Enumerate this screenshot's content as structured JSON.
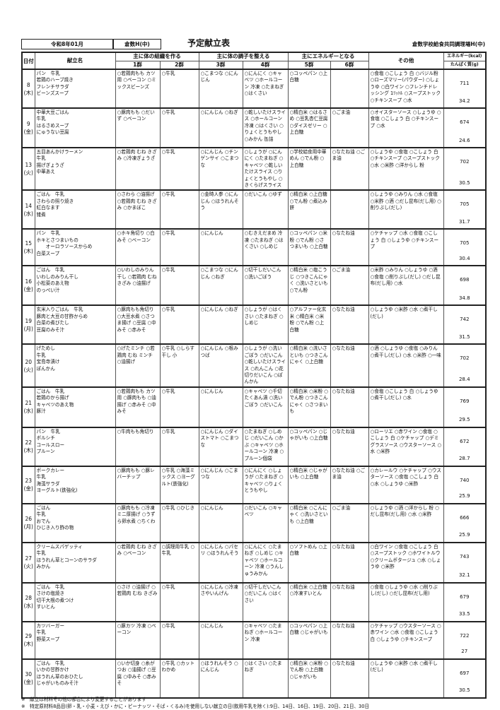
{
  "header": {
    "period": "令和8年01月",
    "school": "倉数H(中)",
    "title": "予定献立表",
    "organization": "倉数学校給食共同調理場H(中)"
  },
  "columns": {
    "date": "日付",
    "menu": "献立名",
    "group_body": "主に体の組織を作る",
    "group_condition": "主に体の調子を整える",
    "group_energy": "主にエネルギーとなる",
    "g1": "1群",
    "g2": "2群",
    "g3": "3群",
    "g4": "4群",
    "g5": "5群",
    "g6": "6群",
    "other": "その他",
    "energy": "エネルギー(kcal)",
    "protein": "たんぱく質(g)"
  },
  "rows": [
    {
      "day": "8",
      "dow": "(木)",
      "menu": [
        "パン　牛乳",
        "若鶏のハーブ焼き",
        "フレンチサラダ",
        "ビーンズスープ"
      ],
      "g1": "○若鶏肉もも カツ用 ○ベーコン ○ミックスビーンズ",
      "g2": "○牛乳",
      "g3": "○こまつな ○にんじん",
      "g4": "○にんにく ○キャベツ ○ホールコーン 冷凍 ○たまねぎ ○はくさい",
      "g5": "○コッペパン ○上白糖",
      "g6": "",
      "other": "○食塩 ○こしょう 白 ○バジル粉 ○ローズマリー(パウダー) ○しょうゆ ○白ワイン ○フレンチドレッシング 1ﾘｯﾄﾙ ○スープストック ○チキンスープ ○水",
      "kcal": "711",
      "protein": "34.2"
    },
    {
      "day": "9",
      "dow": "(金)",
      "menu": [
        "中華大豆ごはん",
        "牛乳",
        "はるさめスープ",
        "にゅうない豆腐"
      ],
      "g1": "○豚肉もも ○だいず ○ベーコン",
      "g2": "○牛乳",
      "g3": "○にんじん ○ねぎ",
      "g4": "○乾しいたけスライス ○ホールコーン 冷凍 ○はくさい ○りょくとうもやし ○みかん 缶詰",
      "g5": "○精白米 ○はるさめ ○豆乳杏仁豆腐 ○ダイスゼリー ○上白糖",
      "g6": "○ごま油",
      "other": "○オイスターソース ○しょうゆ ○食塩 ○こしょう 白 ○チキンスープ ○水",
      "kcal": "674",
      "protein": "24.6"
    },
    {
      "day": "13",
      "dow": "(火)",
      "menu": [
        "五目あんかけラーメン",
        "牛乳",
        "揚げぎょうざ",
        "中華あえ"
      ],
      "g1": "○若鶏肉 むね きざみ ○冷凍ぎょうざ",
      "g2": "○牛乳",
      "g3": "○にんじん ○チンゲンサイ ○こまつな",
      "g4": "○しょうが ○にんにく ○たまねぎ ○キャベツ ○乾しいたけスライス ○りょくとうもやし ○きくらげスライス",
      "g5": "○学校給食用中華めん ○でん粉 ○上白糖",
      "g6": "○なたね油 ○ごま油",
      "other": "○しょうゆ ○食塩 ○こしょう 白 ○チキンスープ ○スープストック ○水 ○米酢 ○洋からし 粉",
      "kcal": "702",
      "protein": "30.5"
    },
    {
      "day": "14",
      "dow": "(水)",
      "menu": [
        "ごはん　牛乳",
        "さわらの照り焼き",
        "紅白なます",
        "雑煮"
      ],
      "g1": "○さわら ○油揚げ ○若鶏肉 むね きざみ ○かまぼこ",
      "g2": "○牛乳",
      "g3": "○金時人参 ○にんじん ○ほうれんそう",
      "g4": "○だいこん ○ゆず",
      "g5": "○精白米 ○上白糖 ○でん粉 ○煮込み餅",
      "g6": "",
      "other": "○しょうゆ ○みりん ○水 ○食塩 ○米酢 ○酒 ○だし昆布(だし用) ○削りぶし(だし)",
      "kcal": "705",
      "protein": "31.7"
    },
    {
      "day": "15",
      "dow": "(木)",
      "menu": [
        "パン　牛乳",
        "ホキとさつまいもの",
        "　　オーロラソースからめ",
        "白菜スープ"
      ],
      "g1": "○ホキ角切り ○白みそ ○ベーコン",
      "g2": "○牛乳",
      "g3": "○にんじん",
      "g4": "○むきえだまめ 冷凍 ○たまねぎ ○はくさい ○しめじ",
      "g5": "○コッペパン ○米粉 ○でん粉 ○さつまいも ○上白糖",
      "g6": "○なたね油",
      "other": "○ケチャップ ○水 ○食塩 ○こしょう 白 ○しょうゆ ○チキンスープ",
      "kcal": "705",
      "protein": "30.4"
    },
    {
      "day": "16",
      "dow": "(金)",
      "menu": [
        "ごはん　牛乳",
        "いわしのみりん干し",
        "小松菜のあえ物",
        "のっぺい汁"
      ],
      "g1": "○いわしのみりん干し ○若鶏肉 むね きざみ ○油揚げ",
      "g2": "○牛乳",
      "g3": "○こまつな ○にんじん ○ねぎ",
      "g4": "○切干しだいこん ○洗いごぼう",
      "g5": "○精白米 ○塩こうじ ○つきこんにゃく ○洗いさといも ○でん粉",
      "g6": "○ごま油",
      "other": "○米酢 ○みりん ○しょうゆ ○酒 ○食塩 ○削りぶし(だし) ○だし昆布(だし用) ○水",
      "kcal": "698",
      "protein": "34.8"
    },
    {
      "day": "19",
      "dow": "(月)",
      "menu": [
        "玄米入りごはん　牛乳",
        "豚肉と大豆の甘酢からめ",
        "白菜の煮びたし",
        "豆腐のみそ汁"
      ],
      "g1": "○豚肉もも角切り ○大豆水煮 ○さつま揚げ ○豆腐 ○中みそ ○赤みそ",
      "g2": "○牛乳",
      "g3": "○にんじん ○ねぎ",
      "g4": "○しょうが ○はくさい ○たまねぎ ○しめじ",
      "g5": "○アルファー化玄米 ○精白米 ○米粉 ○でん粉 ○上白糖",
      "g6": "○なたね油",
      "other": "○しょうゆ ○米酢 ○水 ○煮干し(だし)",
      "kcal": "742",
      "protein": "31.5"
    },
    {
      "day": "20",
      "dow": "(火)",
      "menu": [
        "げためし",
        "牛乳",
        "宝島寺漬け",
        "ぽんかん"
      ],
      "g1": "○げたミンチ ○若鶏肉 むね ミンチ ○油揚げ",
      "g2": "○牛乳 ○しらす干し 小",
      "g3": "○にんじん ○根みつば",
      "g4": "○しょうが ○洗いごぼう ○だいこん ○乾しいたけスライス ○れんこん ○花切りだいこん ○ぽんかん",
      "g5": "○精白米 ○洗いさといも ○つきこんにゃく ○上白糖",
      "g6": "○なたね油",
      "other": "○酒 ○しょうゆ ○食塩 ○みりん ○煮干し(だし) ○水 ○米酢 ○一味",
      "kcal": "702",
      "protein": "28.4"
    },
    {
      "day": "21",
      "dow": "(水)",
      "menu": [
        "ごはん　牛乳",
        "若鶏のから揚げ",
        "キャベツのあえ物",
        "豚汁"
      ],
      "g1": "○若鶏肉もも カツ用 ○豚肉もも ○油揚げ ○赤みそ ○中みそ",
      "g2": "○牛乳",
      "g3": "○にんじん",
      "g4": "○キャベツ ○千切たくあん漬 ○洗いごぼう ○だいこん",
      "g5": "○精白米 ○米粉 ○でん粉 ○つきこんにゃく ○さつまいも",
      "g6": "○なたね油",
      "other": "○食塩 ○こしょう 白 ○しょうゆ ○煮干し(だし) ○水",
      "kcal": "769",
      "protein": "29.5"
    },
    {
      "day": "22",
      "dow": "(木)",
      "menu": [
        "パン　牛乳",
        "ボルシチ",
        "コールスロー",
        "プルーン"
      ],
      "g1": "○牛肉もも角切り",
      "g2": "○牛乳",
      "g3": "○にんじん ○ダイストマト ○こまつな",
      "g4": "○たまねぎ ○しめじ ○だいこん ○かぶ ○キャベツ ○ホールコーン 冷凍 ○プルーン個袋",
      "g5": "○コッペパン ○じゃがいも ○上白糖",
      "g6": "○なたね油",
      "other": "○ローリエ ○赤ワイン ○食塩 ○こしょう 白 ○ケチャップ ○デミグラスソース ○ウスターソース ○水 ○米酢",
      "kcal": "672",
      "protein": "28.7"
    },
    {
      "day": "23",
      "dow": "(金)",
      "menu": [
        "ポークカレー",
        "牛乳",
        "海藻サラダ",
        "ヨーグルト(鉄強化)"
      ],
      "g1": "○豚肉もも ○豚レバーチップ",
      "g2": "○牛乳 ○海藻ミックス ○ヨーグルト(鉄強化)",
      "g3": "○にんじん ○こまつな",
      "g4": "○にんにく ○しょうが ○たまねぎ ○キャベツ ○りょくとうもやし",
      "g5": "○精白米 ○じゃがいも ○上白糖",
      "g6": "○なたね油 ○ごま油",
      "other": "○カレールウ ○ケチャップ ○ウスターソース ○食塩 ○こしょう 白 ○水 ○しょうゆ ○米酢",
      "kcal": "740",
      "protein": "25.9"
    },
    {
      "day": "26",
      "dow": "(月)",
      "menu": [
        "ごはん",
        "牛乳",
        "おでん",
        "ひじき入り酢の物"
      ],
      "g1": "○豚肉もも ○冷凍ミニ厚揚げ ○うずら卵水煮 ○ちくわ",
      "g2": "○牛乳 ○ひじき",
      "g3": "○にんじん",
      "g4": "○だいこん ○キャベツ",
      "g5": "○精白米 ○こんにゃく ○洗いさといも ○上白糖",
      "g6": "○ごま油",
      "other": "○しょうゆ ○酒 ○洋からし 粉 ○だし昆布(だし用) ○水 ○米酢",
      "kcal": "666",
      "protein": "25.9"
    },
    {
      "day": "27",
      "dow": "(火)",
      "menu": [
        "クリームスパゲッティ",
        "牛乳",
        "ほうれん草とコーンのサラダ",
        "みかん"
      ],
      "g1": "○若鶏肉 むね きざみ ○ベーコン",
      "g2": "○調理用牛乳 ○牛乳",
      "g3": "○にんじん ○パセリ ○ほうれんそう",
      "g4": "○にんにく ○たまねぎ ○しめじ ○キャベツ ○ホールコーン 冷凍 ○うんしゅうみかん",
      "g5": "○ソフトめん ○上白糖",
      "g6": "○なたね油",
      "other": "○白ワイン ○食塩 ○こしょう 白 ○スープストック ○ホワイトルウ ○クリームポタージュ ○水 ○しょうゆ ○米酢",
      "kcal": "743",
      "protein": "32.1"
    },
    {
      "day": "28",
      "dow": "(水)",
      "menu": [
        "ごはん　牛乳",
        "さけの塩焼き",
        "切干大根の煮つけ",
        "すいとん"
      ],
      "g1": "○さけ ○油揚げ ○若鶏肉 むね きざみ",
      "g2": "○牛乳",
      "g3": "○にんじん ○冷凍さやいんげん",
      "g4": "○切干しだいこん ○だいこん ○はくさい",
      "g5": "○精白米 ○上白糖 ○冷凍すいとん",
      "g6": "○なたね油",
      "other": "○食塩 ○しょうゆ ○水 ○削りぶし(だし) ○だし昆布(だし用)",
      "kcal": "679",
      "protein": "33.5"
    },
    {
      "day": "29",
      "dow": "(木)",
      "menu": [
        "カツバーガー",
        "牛乳",
        "野菜スープ"
      ],
      "g1": "○豚カツ 冷凍 ○ベーコン",
      "g2": "○牛乳",
      "g3": "○にんじん",
      "g4": "○キャベツ ○たまねぎ ○ホールコーン 冷凍",
      "g5": "○コッペパン ○上白糖 ○じゃがいも",
      "g6": "○なたね油",
      "other": "○ケチャップ ○ウスターソース ○赤ワイン ○水 ○食塩 ○こしょう 白 ○しょうゆ ○チキンスープ",
      "kcal": "722",
      "protein": "27"
    },
    {
      "day": "30",
      "dow": "(金)",
      "menu": [
        "ごはん　牛乳",
        "いかの甘酢かけ",
        "ほうれん草のおひたし",
        "じゃがいものみそ汁"
      ],
      "g1": "○いか切身 ○糸がつお ○油揚げ ○豆腐 ○中みそ ○赤みそ",
      "g2": "○牛乳 ○カットわかめ",
      "g3": "○ほうれんそう ○にんじん",
      "g4": "○はくさい ○たまねぎ",
      "g5": "○精白米 ○米粉 ○でん粉 ○上白糖 ○じゃがいも",
      "g6": "○なたね油",
      "other": "○しょうゆ ○米酢 ○水 ○煮干し(だし)",
      "kcal": "697",
      "protein": "30.5"
    }
  ],
  "notes": [
    "※　献立は材料その他の都合により変更することがあります",
    "※　特定原材料8品目(卵・乳・小麦・えび・かに・ピーナッツ・そば・くるみ)を使用しない献立の日(飲用牛乳を除く):9日、14日、16日、19日、20日、21日、30日"
  ]
}
